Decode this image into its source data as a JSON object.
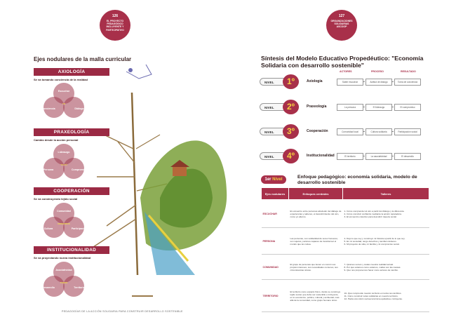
{
  "left_page": {
    "page_badge": {
      "number": "126",
      "caption": "EL PROYECTO PEDAGÓGICO INCLUYENTE Y PARTICIPATIVO"
    },
    "section_title": "Ejes nodulares de la malla curricular",
    "axes": [
      {
        "title": "AXIOLOGÍA",
        "subtitle": "Se va tomando conciencia de la realidad",
        "circles": [
          "Escuchar",
          "Conciencia",
          "Diálogo"
        ],
        "center": "YO"
      },
      {
        "title": "PRAXEOLOGÍA",
        "subtitle": "Cambio desde la acción personal",
        "circles": [
          "Liderazgo",
          "Persona",
          "Compromiso"
        ],
        "center": "YO-TÚ"
      },
      {
        "title": "COOPERACIÓN",
        "subtitle": "Se va construyendo tejido social",
        "circles": [
          "Comunidad",
          "Cultura",
          "Participación"
        ],
        "center": "NOSOTROS"
      },
      {
        "title": "INSTITUCIONALIDAD",
        "subtitle": "Se va proyectando nueva institucionalidad",
        "circles": [
          "Asociatividad",
          "Desarrollo",
          "Territorio"
        ],
        "center": "TODOS"
      }
    ],
    "footer": "PEDAGOGÍAS DE LA ACCIÓN SOLIDARIA PARA CONSTRUIR DESARROLLO SOSTENIBLE"
  },
  "right_page": {
    "page_badge": {
      "number": "127",
      "caption": "ORGANIZACIONES SOLIDARIAS ASCOOP"
    },
    "title": "Síntesis del Modelo Educativo Propedéutico: \"Economía Solidaria con desarrollo sostenible\"",
    "columns": {
      "actores": "ACTORES",
      "proceso": "PROCESO",
      "resultado": "RESULTADO"
    },
    "levels": [
      {
        "label": "NIVEL",
        "num": "1º",
        "name": "Axiología",
        "actores": "Saber escuchar",
        "proceso": "Actitud de diálogo",
        "resultado": "Toma de conciencia"
      },
      {
        "label": "NIVEL",
        "num": "2º",
        "name": "Praxeología",
        "actores": "La persona",
        "proceso": "El liderazgo",
        "resultado": "El compromiso"
      },
      {
        "label": "NIVEL",
        "num": "3º",
        "name": "Cooperación",
        "actores": "Comunidad local",
        "proceso": "Cultura solidaria",
        "resultado": "Participación social"
      },
      {
        "label": "NIVEL",
        "num": "4º",
        "name": "Institucionalidad",
        "actores": "El territorio",
        "proceso": "La asociatividad",
        "resultado": "El desarrollo"
      }
    ],
    "nivel_badge": {
      "prefix": "1er",
      "word": "Nivel"
    },
    "enfoque_title": "Enfoque pedagógico: economía solidaria, modelo de desarrollo sostenible",
    "table_headers": {
      "ejes": "Ejes nodulares",
      "enfoques": "Enfoques centrales",
      "talleres": "Talleres"
    },
    "table_rows": [
      {
        "eje": "ESCUCHAR",
        "enfoque": "El encuentro entre personas alrededor del diálogo de experiencias y saberes, el descubrimiento del otro, como yo alterno.",
        "talleres": [
          "1- Cómo comprender al otro a partir del diálogo y la diferencia.",
          "2- Cómo construir confianza mediante la acción reparadora.",
          "3- El encuentro colectivo para descubrir riqueza social."
        ]
      },
      {
        "eje": "PERSONA",
        "enfoque": "Las personas, con solidaridad de seres humanos, son sujetos y actores capaces de transformar el mundo que les rodea.",
        "talleres": [
          "4- Dejo lo que soy y construyo mi historia a partir de lo que soy.",
          "5- En mi sociedad, tengo derechos y también deberes.",
          "6- Mi proyecto de vida, mi familia y mi compromiso social."
        ]
      },
      {
        "eje": "COMUNIDAD",
        "enfoque": "El grupo de personas que tienen en común sus propios intereses, sus necesidades comunes, sus circunstancias únicas.",
        "talleres": [
          "7- Quiénes somos y cuáles nuestra realidad actual.",
          "8- Por qué estamos como estamos, cuáles son las causas.",
          "9- Qué nos proponemos hacer como actores de cambio."
        ]
      },
      {
        "eje": "TERRITORIO",
        "enfoque": "El territorio como espacio físico, donde se construye tejido social, que debe ser sostenible e incluyente, en lo económico, político, cultural y ambiental; más allá de la comunidad, como grupo humano único.",
        "talleres": [
          "10- Qué comprende nuestro territorio en todos sus ámbitos.",
          "11- Cómo construir redes solidarias en nuestro territorio.",
          "12- Hacia una visión socioeconómica equitativa e incluyente."
        ]
      }
    ]
  },
  "colors": {
    "accent": "#a8304a",
    "gold": "#f4d03f"
  }
}
